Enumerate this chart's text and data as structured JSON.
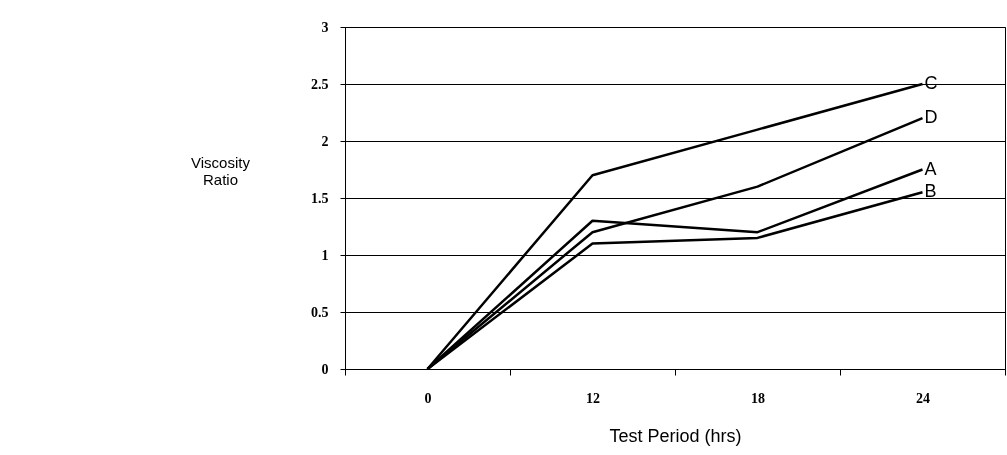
{
  "chart_data": {
    "type": "line",
    "xlabel": "Test Period (hrs)",
    "ylabel": "Viscosity Ratio",
    "categories": [
      "0",
      "12",
      "18",
      "24"
    ],
    "series": [
      {
        "name": "C",
        "color": "#000000",
        "values": [
          0,
          1.7,
          2.1,
          2.5
        ]
      },
      {
        "name": "D",
        "color": "#000000",
        "values": [
          0,
          1.2,
          1.6,
          2.2
        ]
      },
      {
        "name": "A",
        "color": "#000000",
        "values": [
          0,
          1.3,
          1.2,
          1.75
        ]
      },
      {
        "name": "B",
        "color": "#000000",
        "values": [
          0,
          1.1,
          1.15,
          1.55
        ]
      }
    ],
    "ylim": [
      0,
      3
    ],
    "yticks": [
      0,
      0.5,
      1,
      1.5,
      2,
      2.5,
      3
    ],
    "grid": "y",
    "legend": false,
    "marker": "none",
    "line_style": "solid"
  }
}
